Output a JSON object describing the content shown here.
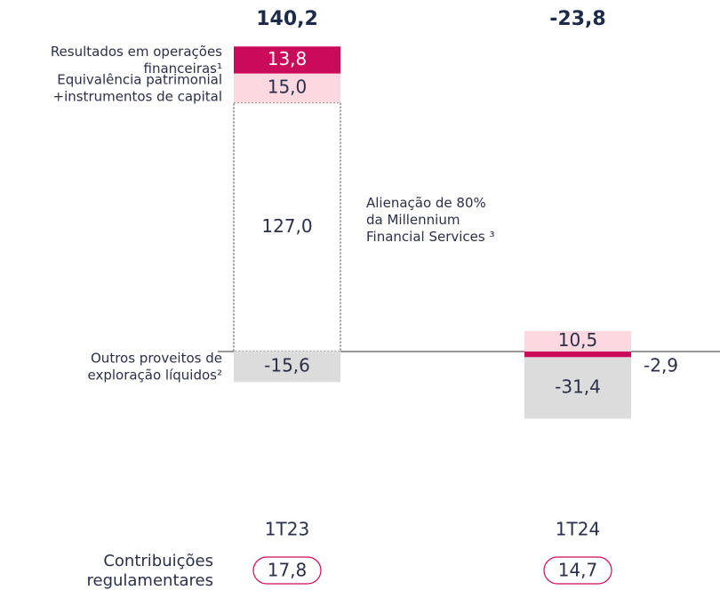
{
  "chart_data": {
    "type": "bar",
    "stacked": true,
    "categories": [
      "1T23",
      "1T24"
    ],
    "totals": [
      {
        "value": 140.2,
        "label": "140,2"
      },
      {
        "value": -23.8,
        "label": "-23,8"
      }
    ],
    "series": [
      {
        "name": "Alienação de 80%\nda Millennium\nFinancial Services ³",
        "color": "#ffffff",
        "style": "dotted",
        "label_color": "#2b2f4a",
        "values": [
          127.0,
          null
        ],
        "value_labels": [
          "127,0",
          null
        ]
      },
      {
        "name": "Equivalência patrimonial\n+instrumentos de capital",
        "color": "#fcd9e1",
        "label_color": "#2b2f4a",
        "values": [
          15.0,
          10.5
        ],
        "value_labels": [
          "15,0",
          "10,5"
        ]
      },
      {
        "name": "Resultados em operações\nfinanceiras¹",
        "color": "#cc0a5a",
        "label_color": "#ffffff",
        "values": [
          13.8,
          -2.9
        ],
        "value_labels": [
          "13,8",
          "-2,9"
        ]
      },
      {
        "name": "Outros proveitos de\nexploração líquidos²",
        "color": "#dcdcdc",
        "label_color": "#2b2f4a",
        "values": [
          -15.6,
          -31.4
        ],
        "value_labels": [
          "-15,6",
          "-31,4"
        ]
      }
    ],
    "contributions": {
      "label": "Contribuições\nregulamentares",
      "values": [
        17.8,
        14.7
      ],
      "value_labels": [
        "17,8",
        "14,7"
      ]
    }
  }
}
